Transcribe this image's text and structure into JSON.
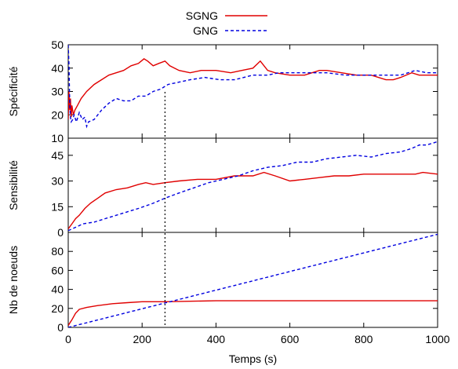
{
  "chart_data": {
    "type": "line",
    "xlabel": "Temps (s)",
    "xlim": [
      0,
      1000
    ],
    "xticks": [
      0,
      200,
      400,
      600,
      800,
      1000
    ],
    "vline_x": 262,
    "legend": {
      "placement": "top-center",
      "entries": [
        "SGNG",
        "GNG"
      ]
    },
    "colors": {
      "SGNG": "#e00000",
      "GNG": "#0000e0",
      "vline": "#000000"
    },
    "panels": [
      {
        "ylabel": "Spécificité",
        "ylim": [
          10,
          50
        ],
        "yticks": [
          10,
          20,
          30,
          40,
          50
        ],
        "series": [
          {
            "name": "SGNG",
            "points": [
              [
                0,
                18
              ],
              [
                2,
                30
              ],
              [
                4,
                22
              ],
              [
                6,
                27
              ],
              [
                8,
                19
              ],
              [
                10,
                24
              ],
              [
                14,
                20
              ],
              [
                18,
                22
              ],
              [
                25,
                24
              ],
              [
                35,
                27
              ],
              [
                50,
                30
              ],
              [
                70,
                33
              ],
              [
                90,
                35
              ],
              [
                110,
                37
              ],
              [
                130,
                38
              ],
              [
                150,
                39
              ],
              [
                170,
                41
              ],
              [
                190,
                42
              ],
              [
                205,
                44
              ],
              [
                215,
                43
              ],
              [
                230,
                41
              ],
              [
                245,
                42
              ],
              [
                262,
                43
              ],
              [
                275,
                41
              ],
              [
                300,
                39
              ],
              [
                330,
                38
              ],
              [
                360,
                39
              ],
              [
                400,
                39
              ],
              [
                440,
                38
              ],
              [
                470,
                39
              ],
              [
                500,
                40
              ],
              [
                520,
                43
              ],
              [
                540,
                39
              ],
              [
                560,
                38
              ],
              [
                600,
                37
              ],
              [
                640,
                37
              ],
              [
                680,
                39
              ],
              [
                700,
                39
              ],
              [
                740,
                38
              ],
              [
                780,
                37
              ],
              [
                820,
                37
              ],
              [
                860,
                35
              ],
              [
                880,
                35
              ],
              [
                900,
                36
              ],
              [
                930,
                38
              ],
              [
                950,
                37
              ],
              [
                980,
                37
              ],
              [
                1000,
                37
              ]
            ]
          },
          {
            "name": "GNG",
            "points": [
              [
                0,
                50
              ],
              [
                2,
                42
              ],
              [
                4,
                25
              ],
              [
                6,
                19
              ],
              [
                8,
                17
              ],
              [
                12,
                18
              ],
              [
                16,
                20
              ],
              [
                22,
                17
              ],
              [
                30,
                21
              ],
              [
                38,
                18
              ],
              [
                45,
                19
              ],
              [
                50,
                15
              ],
              [
                55,
                17
              ],
              [
                70,
                18
              ],
              [
                90,
                22
              ],
              [
                110,
                25
              ],
              [
                130,
                27
              ],
              [
                150,
                26
              ],
              [
                170,
                26
              ],
              [
                190,
                28
              ],
              [
                210,
                28
              ],
              [
                230,
                30
              ],
              [
                250,
                31
              ],
              [
                270,
                33
              ],
              [
                300,
                34
              ],
              [
                330,
                35
              ],
              [
                370,
                36
              ],
              [
                410,
                35
              ],
              [
                450,
                35
              ],
              [
                500,
                37
              ],
              [
                540,
                37
              ],
              [
                570,
                38
              ],
              [
                600,
                38
              ],
              [
                650,
                38
              ],
              [
                700,
                38
              ],
              [
                750,
                37
              ],
              [
                800,
                37
              ],
              [
                850,
                37
              ],
              [
                900,
                37
              ],
              [
                940,
                39
              ],
              [
                970,
                38
              ],
              [
                1000,
                38
              ]
            ]
          }
        ]
      },
      {
        "ylabel": "Sensibilité",
        "ylim": [
          0,
          55
        ],
        "yticks": [
          0,
          15,
          30,
          45
        ],
        "series": [
          {
            "name": "SGNG",
            "points": [
              [
                0,
                2
              ],
              [
                10,
                5
              ],
              [
                20,
                8
              ],
              [
                30,
                10
              ],
              [
                45,
                14
              ],
              [
                60,
                17
              ],
              [
                80,
                20
              ],
              [
                100,
                23
              ],
              [
                130,
                25
              ],
              [
                160,
                26
              ],
              [
                190,
                28
              ],
              [
                210,
                29
              ],
              [
                230,
                28
              ],
              [
                262,
                29
              ],
              [
                300,
                30
              ],
              [
                350,
                31
              ],
              [
                400,
                31
              ],
              [
                450,
                33
              ],
              [
                500,
                33
              ],
              [
                530,
                35
              ],
              [
                560,
                33
              ],
              [
                600,
                30
              ],
              [
                640,
                31
              ],
              [
                680,
                32
              ],
              [
                720,
                33
              ],
              [
                760,
                33
              ],
              [
                800,
                34
              ],
              [
                850,
                34
              ],
              [
                900,
                34
              ],
              [
                940,
                34
              ],
              [
                960,
                35
              ],
              [
                1000,
                34
              ]
            ]
          },
          {
            "name": "GNG",
            "points": [
              [
                0,
                1
              ],
              [
                20,
                3
              ],
              [
                40,
                5
              ],
              [
                70,
                6
              ],
              [
                100,
                8
              ],
              [
                130,
                10
              ],
              [
                160,
                12
              ],
              [
                190,
                14
              ],
              [
                230,
                17
              ],
              [
                262,
                20
              ],
              [
                300,
                23
              ],
              [
                340,
                26
              ],
              [
                380,
                29
              ],
              [
                420,
                31
              ],
              [
                460,
                33
              ],
              [
                500,
                36
              ],
              [
                540,
                38
              ],
              [
                580,
                39
              ],
              [
                620,
                41
              ],
              [
                660,
                41
              ],
              [
                700,
                43
              ],
              [
                740,
                44
              ],
              [
                780,
                45
              ],
              [
                820,
                44
              ],
              [
                860,
                46
              ],
              [
                900,
                47
              ],
              [
                930,
                49
              ],
              [
                950,
                51
              ],
              [
                970,
                51
              ],
              [
                1000,
                53
              ]
            ]
          }
        ]
      },
      {
        "ylabel": "Nb de noeuds",
        "ylim": [
          0,
          100
        ],
        "yticks": [
          0,
          20,
          40,
          60,
          80
        ],
        "series": [
          {
            "name": "SGNG",
            "points": [
              [
                0,
                2
              ],
              [
                10,
                8
              ],
              [
                20,
                15
              ],
              [
                30,
                19
              ],
              [
                50,
                21
              ],
              [
                80,
                23
              ],
              [
                120,
                25
              ],
              [
                160,
                26
              ],
              [
                200,
                27
              ],
              [
                262,
                27
              ],
              [
                400,
                28
              ],
              [
                1000,
                28
              ]
            ]
          },
          {
            "name": "GNG",
            "points": [
              [
                0,
                0
              ],
              [
                1000,
                98
              ]
            ]
          }
        ]
      }
    ]
  }
}
